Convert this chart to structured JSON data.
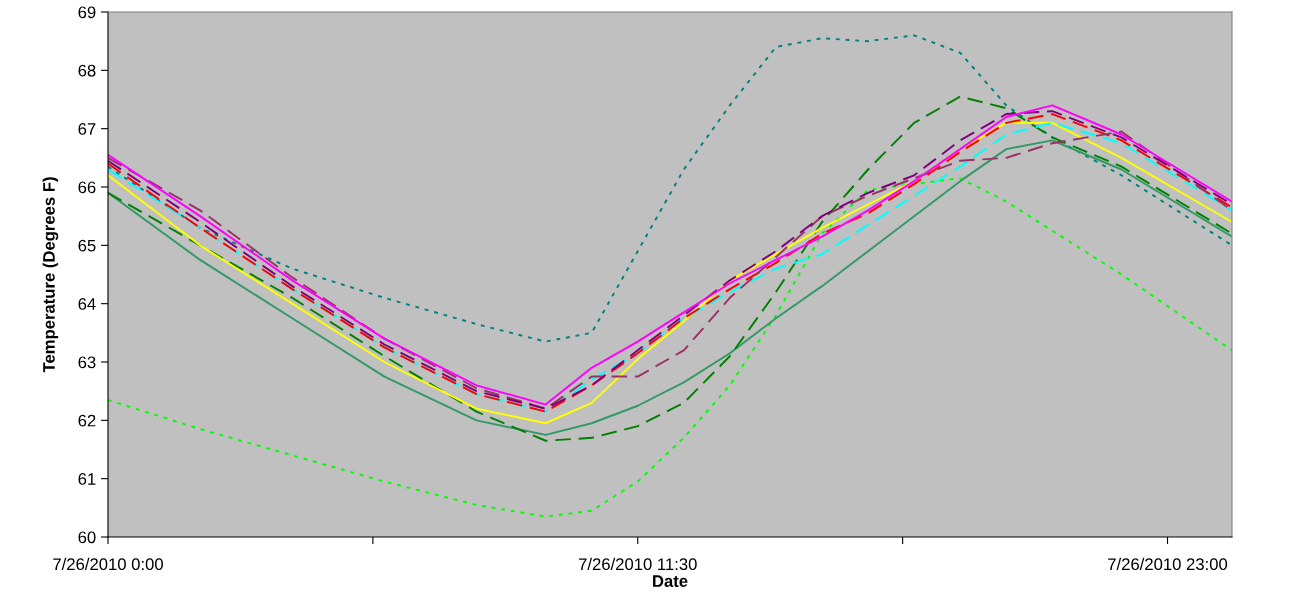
{
  "chart_data": {
    "type": "line",
    "xlabel": "Date",
    "ylabel": "Temperature (Degrees F)",
    "x": [
      "2010-07-26T00:00",
      "2010-07-26T02:00",
      "2010-07-26T04:00",
      "2010-07-26T06:00",
      "2010-07-26T08:00",
      "2010-07-26T09:30",
      "2010-07-26T10:30",
      "2010-07-26T11:30",
      "2010-07-26T12:30",
      "2010-07-26T13:30",
      "2010-07-26T14:30",
      "2010-07-26T15:30",
      "2010-07-26T16:30",
      "2010-07-26T17:30",
      "2010-07-26T18:30",
      "2010-07-26T19:30",
      "2010-07-26T20:30",
      "2010-07-26T22:00",
      "2010-07-27T00:24"
    ],
    "xlim": [
      "2010-07-26T00:00",
      "2010-07-27T00:24"
    ],
    "xticks": [
      {
        "value": "2010-07-26T00:00",
        "label": "7/26/2010 0:00"
      },
      {
        "value": "2010-07-26T05:45",
        "label": null
      },
      {
        "value": "2010-07-26T11:30",
        "label": "7/26/2010 11:30"
      },
      {
        "value": "2010-07-26T17:15",
        "label": null
      },
      {
        "value": "2010-07-26T23:00",
        "label": "7/26/2010 23:00"
      }
    ],
    "ylim": [
      60,
      69
    ],
    "yticks": [
      60,
      61,
      62,
      63,
      64,
      65,
      66,
      67,
      68,
      69
    ],
    "grid": false,
    "marker": "none",
    "series": [
      {
        "color": "#00ff00",
        "line_style": "dotted",
        "values": [
          62.35,
          61.85,
          61.4,
          60.95,
          60.55,
          60.35,
          60.45,
          60.95,
          61.7,
          62.6,
          63.8,
          65.2,
          65.95,
          66.05,
          66.15,
          65.75,
          65.25,
          64.5,
          63.2
        ]
      },
      {
        "color": "#008080",
        "line_style": "dotted",
        "values": [
          66.35,
          65.3,
          64.6,
          64.1,
          63.65,
          63.35,
          63.5,
          64.9,
          66.3,
          67.4,
          68.4,
          68.55,
          68.5,
          68.6,
          68.3,
          67.4,
          66.85,
          66.2,
          65.0
        ]
      },
      {
        "color": "#339966",
        "line_style": "solid",
        "values": [
          65.9,
          64.75,
          63.75,
          62.75,
          62.0,
          61.75,
          61.95,
          62.25,
          62.65,
          63.15,
          63.75,
          64.3,
          64.9,
          65.5,
          66.1,
          66.65,
          66.8,
          66.3,
          65.15
        ]
      },
      {
        "color": "#008000",
        "line_style": "dashed",
        "values": [
          65.9,
          65.0,
          64.1,
          63.1,
          62.15,
          61.65,
          61.7,
          61.9,
          62.3,
          63.1,
          64.2,
          65.4,
          66.3,
          67.1,
          67.55,
          67.35,
          66.85,
          66.35,
          65.2
        ]
      },
      {
        "color": "#ffff00",
        "line_style": "solid",
        "values": [
          66.2,
          65.0,
          64.0,
          63.0,
          62.2,
          61.95,
          62.3,
          63.05,
          63.7,
          64.4,
          64.85,
          65.3,
          65.7,
          66.1,
          66.65,
          67.1,
          67.1,
          66.5,
          65.4
        ]
      },
      {
        "color": "#00ffff",
        "line_style": "dashed",
        "values": [
          66.3,
          65.3,
          64.25,
          63.25,
          62.45,
          62.15,
          62.7,
          63.15,
          63.75,
          64.2,
          64.6,
          64.85,
          65.35,
          65.85,
          66.35,
          66.9,
          67.1,
          66.75,
          65.6
        ]
      },
      {
        "color": "#ff0000",
        "line_style": "dashed",
        "values": [
          66.4,
          65.3,
          64.25,
          63.25,
          62.45,
          62.15,
          62.6,
          63.15,
          63.75,
          64.25,
          64.7,
          65.2,
          65.55,
          66.05,
          66.6,
          67.1,
          67.25,
          66.8,
          65.65
        ]
      },
      {
        "color": "#993366",
        "line_style": "dashed",
        "values": [
          66.5,
          65.6,
          64.45,
          63.4,
          62.55,
          62.2,
          62.75,
          62.75,
          63.2,
          64.1,
          64.8,
          65.5,
          65.85,
          66.15,
          66.45,
          66.5,
          66.75,
          66.95,
          65.6
        ]
      },
      {
        "color": "#800080",
        "line_style": "dashed",
        "values": [
          66.45,
          65.4,
          64.3,
          63.3,
          62.5,
          62.2,
          62.6,
          63.2,
          63.8,
          64.4,
          64.9,
          65.5,
          65.9,
          66.2,
          66.8,
          67.25,
          67.3,
          66.85,
          65.7
        ]
      },
      {
        "color": "#ff00ff",
        "line_style": "solid",
        "values": [
          66.55,
          65.5,
          64.4,
          63.4,
          62.6,
          62.27,
          62.9,
          63.35,
          63.85,
          64.35,
          64.75,
          65.15,
          65.6,
          66.1,
          66.65,
          67.2,
          67.4,
          66.9,
          65.75
        ]
      }
    ]
  }
}
